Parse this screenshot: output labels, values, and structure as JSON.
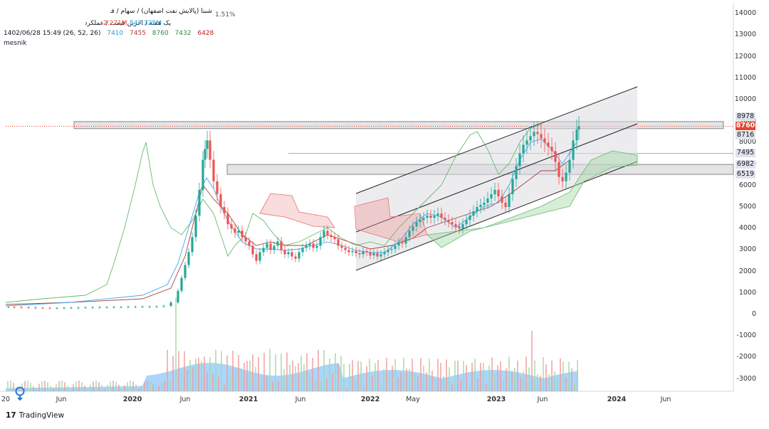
{
  "header": {
    "title_line": "شبنا (پالایش نفت اصفهان) / سهام / فراورده های نفتی کک و سوخت هسته ای / بورس تهران",
    "change_text": "1.51%",
    "subtitle_line": "یک هفته / اخرین قیمت / عملکردی",
    "volume_prefix": "2.271M",
    "volume_ma": "547.325M",
    "indicator_label": "1402/06/28 15:49 (26, 52, 26)",
    "indicator_values": [
      "7410",
      "7455",
      "8760",
      "7432",
      "6428"
    ],
    "indicator_colors": [
      "#2a9bd6",
      "#b04040",
      "#2e8b3e",
      "#2e8b3e",
      "#c02020"
    ],
    "author": "mesnik"
  },
  "y_axis": [
    "14000",
    "13000",
    "12000",
    "11000",
    "10000",
    "9000",
    "8000",
    "7000",
    "6000",
    "5000",
    "4000",
    "3000",
    "2000",
    "1000",
    "0",
    "-1000",
    "-2000",
    "-3000"
  ],
  "x_axis": [
    {
      "label": "20",
      "bold": false
    },
    {
      "label": "Jun",
      "bold": false
    },
    {
      "label": "2020",
      "bold": true
    },
    {
      "label": "Jun",
      "bold": false
    },
    {
      "label": "2021",
      "bold": true
    },
    {
      "label": "Jun",
      "bold": false
    },
    {
      "label": "2022",
      "bold": true
    },
    {
      "label": "May",
      "bold": false
    },
    {
      "label": "2023",
      "bold": true
    },
    {
      "label": "Jun",
      "bold": false
    },
    {
      "label": "2024",
      "bold": true
    },
    {
      "label": "Jun",
      "bold": false
    }
  ],
  "price_labels": [
    {
      "value": "8978",
      "style": "gray"
    },
    {
      "value": "8760",
      "style": "red"
    },
    {
      "value": "8716",
      "style": "gray"
    },
    {
      "value": "7495",
      "style": "gray"
    },
    {
      "value": "6982",
      "style": "gray"
    },
    {
      "value": "6519",
      "style": "gray"
    }
  ],
  "brand": {
    "logo": "17",
    "name": "TradingView"
  },
  "colors": {
    "up": "#26a69a",
    "down": "#ef5350",
    "cloud_green": "#4caf50",
    "cloud_red": "#ef5350",
    "volume": "#64b5f6"
  }
}
